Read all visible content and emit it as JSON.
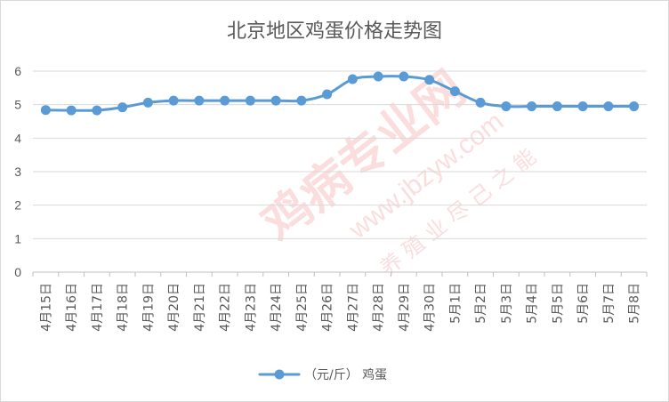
{
  "chart_data": {
    "type": "line",
    "title": "北京地区鸡蛋价格走势图",
    "categories": [
      "4月15日",
      "4月16日",
      "4月17日",
      "4月18日",
      "4月19日",
      "4月20日",
      "4月21日",
      "4月22日",
      "4月23日",
      "4月24日",
      "4月25日",
      "4月26日",
      "4月27日",
      "4月28日",
      "4月29日",
      "4月30日",
      "5月1日",
      "5月2日",
      "5月3日",
      "5月4日",
      "5月5日",
      "5月6日",
      "5月7日",
      "5月8日"
    ],
    "series": [
      {
        "name": "（元/斤） 鸡蛋",
        "values": [
          4.84,
          4.83,
          4.83,
          4.92,
          5.06,
          5.12,
          5.12,
          5.12,
          5.12,
          5.12,
          5.12,
          5.31,
          5.76,
          5.84,
          5.84,
          5.74,
          5.4,
          5.06,
          4.95,
          4.95,
          4.95,
          4.95,
          4.95,
          4.95
        ],
        "color": "#5b9bd5"
      }
    ],
    "ylim": [
      0,
      6
    ],
    "yticks": [
      "0",
      "1",
      "2",
      "3",
      "4",
      "5",
      "6"
    ],
    "grid": "horizontal",
    "legend": "bottom",
    "xlabel": "",
    "ylabel": ""
  },
  "watermark": {
    "brand_text": "鸡病专业网",
    "url_text": "www.jbzyw.com",
    "sub_text": "养 殖 业 尽 己 之 能"
  }
}
